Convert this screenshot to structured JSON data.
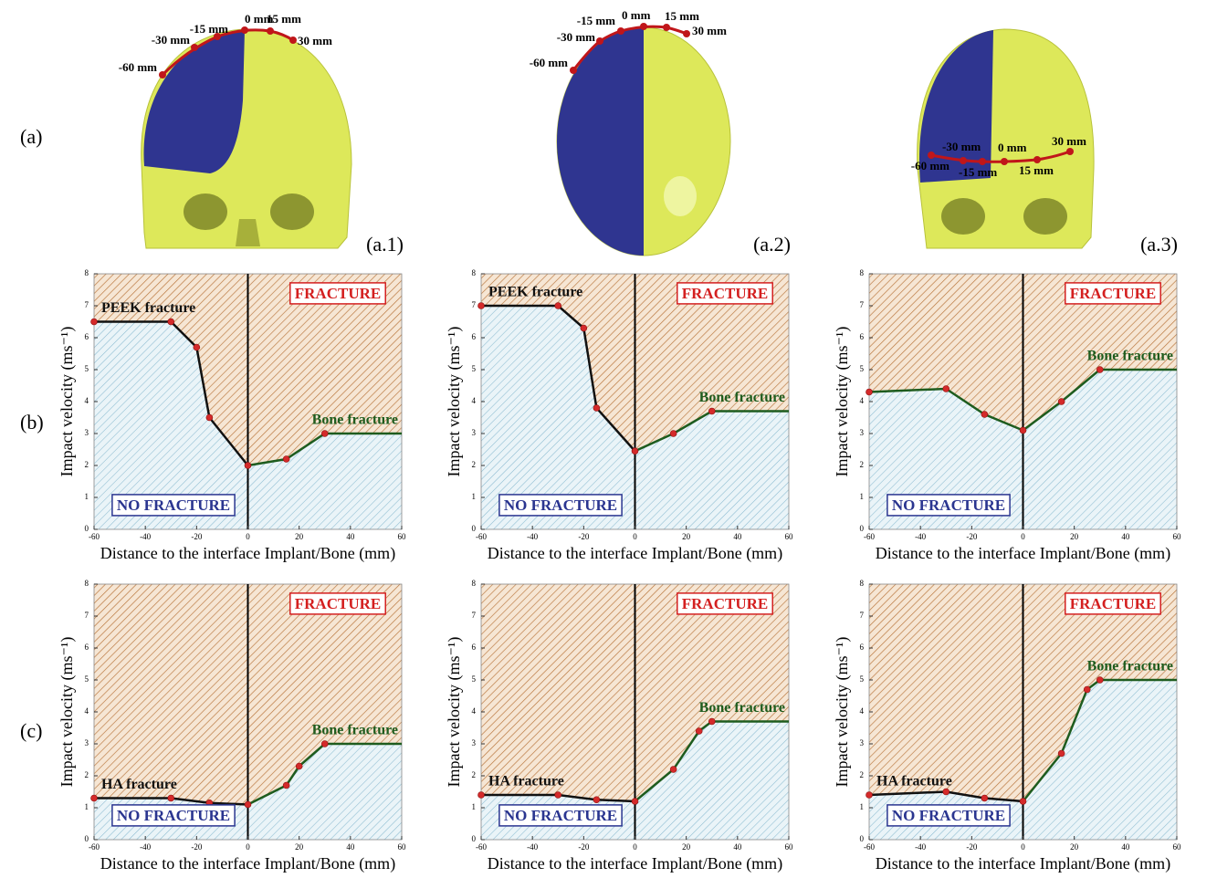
{
  "figure": {
    "panel_labels": [
      "(a)",
      "(b)",
      "(c)"
    ],
    "subpanel_labels": [
      "(a.1)",
      "(a.2)",
      "(a.3)"
    ],
    "skull_labels": [
      "-60 mm",
      "-30 mm",
      "-15 mm",
      "0 mm",
      "15 mm",
      "30 mm"
    ]
  },
  "chart_data": [
    {
      "type": "line",
      "xlabel": "Distance to the interface Implant/Bone (mm)",
      "ylabel": "Impact velocity (ms⁻¹)",
      "xlim": [
        -60,
        60
      ],
      "xticks": [
        -60,
        -40,
        -20,
        0,
        20,
        40,
        60
      ],
      "ylim": [
        0,
        8
      ],
      "yticks": [
        0,
        1,
        2,
        3,
        4,
        5,
        6,
        7,
        8
      ],
      "interface_x": 0,
      "annotations": {
        "fracture": "FRACTURE",
        "no_fracture": "NO FRACTURE"
      },
      "series": [
        {
          "name": "PEEK fracture",
          "color": "#111111",
          "x": [
            -60,
            -30,
            -20,
            -15,
            0
          ],
          "values": [
            6.5,
            6.5,
            5.7,
            3.5,
            2.0
          ]
        },
        {
          "name": "Bone fracture",
          "color": "#1e5c1e",
          "x": [
            0,
            15,
            30,
            60
          ],
          "values": [
            2.0,
            2.2,
            3.0,
            3.0
          ]
        }
      ]
    },
    {
      "type": "line",
      "xlabel": "Distance to the interface Implant/Bone (mm)",
      "ylabel": "Impact velocity (ms⁻¹)",
      "xlim": [
        -60,
        60
      ],
      "xticks": [
        -60,
        -40,
        -20,
        0,
        20,
        40,
        60
      ],
      "ylim": [
        0,
        8
      ],
      "yticks": [
        0,
        1,
        2,
        3,
        4,
        5,
        6,
        7,
        8
      ],
      "interface_x": 0,
      "annotations": {
        "fracture": "FRACTURE",
        "no_fracture": "NO FRACTURE"
      },
      "series": [
        {
          "name": "PEEK fracture",
          "color": "#111111",
          "x": [
            -60,
            -30,
            -20,
            -15,
            0
          ],
          "values": [
            7.0,
            7.0,
            6.3,
            3.8,
            2.45
          ]
        },
        {
          "name": "Bone fracture",
          "color": "#1e5c1e",
          "x": [
            0,
            15,
            30,
            60
          ],
          "values": [
            2.45,
            3.0,
            3.7,
            3.7
          ]
        }
      ]
    },
    {
      "type": "line",
      "xlabel": "Distance to the interface Implant/Bone (mm)",
      "ylabel": "Impact velocity (ms⁻¹)",
      "xlim": [
        -60,
        60
      ],
      "xticks": [
        -60,
        -40,
        -20,
        0,
        20,
        40,
        60
      ],
      "ylim": [
        0,
        8
      ],
      "yticks": [
        0,
        1,
        2,
        3,
        4,
        5,
        6,
        7,
        8
      ],
      "interface_x": 0,
      "annotations": {
        "fracture": "FRACTURE",
        "no_fracture": "NO FRACTURE"
      },
      "series": [
        {
          "color": "#1e5c1e",
          "x": [
            -60,
            -30,
            -15,
            0
          ],
          "values": [
            4.3,
            4.4,
            3.6,
            3.1
          ]
        },
        {
          "name": "Bone fracture",
          "color": "#1e5c1e",
          "x": [
            0,
            15,
            30,
            60
          ],
          "values": [
            3.1,
            4.0,
            5.0,
            5.0
          ]
        }
      ]
    },
    {
      "type": "line",
      "xlabel": "Distance to the interface Implant/Bone (mm)",
      "ylabel": "Impact velocity (ms⁻¹)",
      "xlim": [
        -60,
        60
      ],
      "xticks": [
        -60,
        -40,
        -20,
        0,
        20,
        40,
        60
      ],
      "ylim": [
        0,
        8
      ],
      "yticks": [
        0,
        1,
        2,
        3,
        4,
        5,
        6,
        7,
        8
      ],
      "interface_x": 0,
      "annotations": {
        "fracture": "FRACTURE",
        "no_fracture": "NO FRACTURE"
      },
      "series": [
        {
          "name": "HA fracture",
          "color": "#111111",
          "x": [
            -60,
            -30,
            -15,
            0
          ],
          "values": [
            1.3,
            1.3,
            1.15,
            1.1
          ]
        },
        {
          "name": "Bone fracture",
          "color": "#1e5c1e",
          "x": [
            0,
            15,
            20,
            30,
            60
          ],
          "values": [
            1.1,
            1.7,
            2.3,
            3.0,
            3.0
          ]
        }
      ]
    },
    {
      "type": "line",
      "xlabel": "Distance to the interface Implant/Bone (mm)",
      "ylabel": "Impact velocity (ms⁻¹)",
      "xlim": [
        -60,
        60
      ],
      "xticks": [
        -60,
        -40,
        -20,
        0,
        20,
        40,
        60
      ],
      "ylim": [
        0,
        8
      ],
      "yticks": [
        0,
        1,
        2,
        3,
        4,
        5,
        6,
        7,
        8
      ],
      "interface_x": 0,
      "annotations": {
        "fracture": "FRACTURE",
        "no_fracture": "NO FRACTURE"
      },
      "series": [
        {
          "name": "HA fracture",
          "color": "#111111",
          "x": [
            -60,
            -30,
            -15,
            0
          ],
          "values": [
            1.4,
            1.4,
            1.25,
            1.2
          ]
        },
        {
          "name": "Bone fracture",
          "color": "#1e5c1e",
          "x": [
            0,
            15,
            25,
            30,
            60
          ],
          "values": [
            1.2,
            2.2,
            3.4,
            3.7,
            3.7
          ]
        }
      ]
    },
    {
      "type": "line",
      "xlabel": "Distance to the interface Implant/Bone (mm)",
      "ylabel": "Impact velocity (ms⁻¹)",
      "xlim": [
        -60,
        60
      ],
      "xticks": [
        -60,
        -40,
        -20,
        0,
        20,
        40,
        60
      ],
      "ylim": [
        0,
        8
      ],
      "yticks": [
        0,
        1,
        2,
        3,
        4,
        5,
        6,
        7,
        8
      ],
      "interface_x": 0,
      "annotations": {
        "fracture": "FRACTURE",
        "no_fracture": "NO FRACTURE"
      },
      "series": [
        {
          "name": "HA fracture",
          "color": "#111111",
          "x": [
            -60,
            -30,
            -15,
            0
          ],
          "values": [
            1.4,
            1.5,
            1.3,
            1.2
          ]
        },
        {
          "name": "Bone fracture",
          "color": "#1e5c1e",
          "x": [
            0,
            15,
            25,
            30,
            60
          ],
          "values": [
            1.2,
            2.7,
            4.7,
            5.0,
            5.0
          ]
        }
      ]
    }
  ]
}
